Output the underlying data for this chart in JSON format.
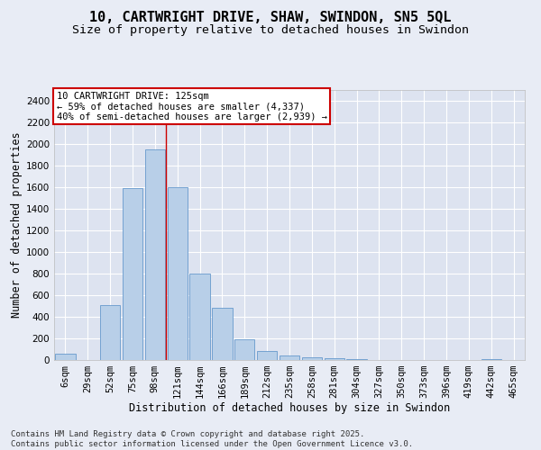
{
  "title_line1": "10, CARTWRIGHT DRIVE, SHAW, SWINDON, SN5 5QL",
  "title_line2": "Size of property relative to detached houses in Swindon",
  "xlabel": "Distribution of detached houses by size in Swindon",
  "ylabel": "Number of detached properties",
  "bar_color": "#b8cfe8",
  "bar_edge_color": "#6699cc",
  "background_color": "#dde3f0",
  "grid_color": "#ffffff",
  "categories": [
    "6sqm",
    "29sqm",
    "52sqm",
    "75sqm",
    "98sqm",
    "121sqm",
    "144sqm",
    "166sqm",
    "189sqm",
    "212sqm",
    "235sqm",
    "258sqm",
    "281sqm",
    "304sqm",
    "327sqm",
    "350sqm",
    "373sqm",
    "396sqm",
    "419sqm",
    "442sqm",
    "465sqm"
  ],
  "values": [
    55,
    0,
    510,
    1590,
    1950,
    1600,
    800,
    485,
    195,
    85,
    40,
    25,
    18,
    8,
    4,
    0,
    0,
    0,
    0,
    10,
    0
  ],
  "ylim": [
    0,
    2500
  ],
  "yticks": [
    0,
    200,
    400,
    600,
    800,
    1000,
    1200,
    1400,
    1600,
    1800,
    2000,
    2200,
    2400
  ],
  "vline_x": 4.5,
  "vline_color": "#cc0000",
  "annotation_text": "10 CARTWRIGHT DRIVE: 125sqm\n← 59% of detached houses are smaller (4,337)\n40% of semi-detached houses are larger (2,939) →",
  "annotation_box_color": "#ffffff",
  "annotation_box_edge": "#cc0000",
  "footer_text": "Contains HM Land Registry data © Crown copyright and database right 2025.\nContains public sector information licensed under the Open Government Licence v3.0.",
  "title_fontsize": 11,
  "subtitle_fontsize": 9.5,
  "label_fontsize": 8.5,
  "tick_fontsize": 7.5,
  "annotation_fontsize": 7.5,
  "footer_fontsize": 6.5
}
